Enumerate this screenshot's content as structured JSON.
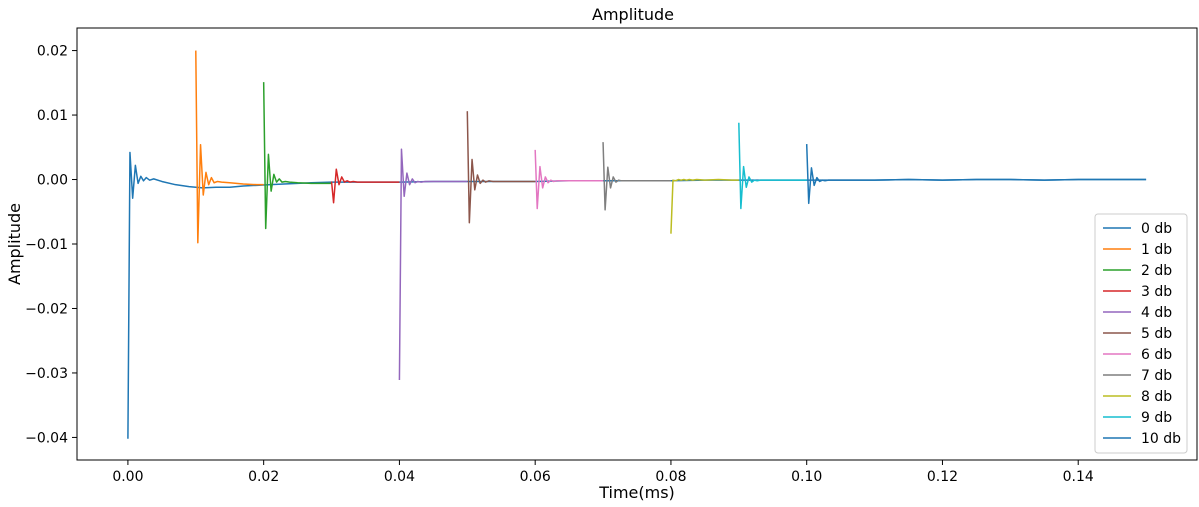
{
  "chart_data": {
    "type": "line",
    "title": "Amplitude",
    "xlabel": "Time(ms)",
    "ylabel": "Amplitude",
    "xlim": [
      -0.0075,
      0.1575
    ],
    "ylim": [
      -0.0435,
      0.0235
    ],
    "xticks": [
      0.0,
      0.02,
      0.04,
      0.06,
      0.08,
      0.1,
      0.12,
      0.14
    ],
    "xtick_labels": [
      "0.00",
      "0.02",
      "0.04",
      "0.06",
      "0.08",
      "0.10",
      "0.12",
      "0.14"
    ],
    "yticks": [
      -0.04,
      -0.03,
      -0.02,
      -0.01,
      0.0,
      0.01,
      0.02
    ],
    "ytick_labels": [
      "−0.04",
      "−0.03",
      "−0.02",
      "−0.01",
      "0.00",
      "0.01",
      "0.02"
    ],
    "grid": false,
    "legend_position": "bottom-right",
    "series": [
      {
        "name": "0 db",
        "color": "#1f77b4",
        "x": [
          0.0,
          0.0003,
          0.0007,
          0.0011,
          0.0015,
          0.0019,
          0.0023,
          0.0027,
          0.0032,
          0.0038,
          0.005,
          0.007,
          0.009,
          0.011,
          0.013,
          0.015,
          0.017,
          0.019,
          0.021,
          0.023,
          0.025,
          0.027,
          0.03,
          0.035,
          0.04,
          0.045,
          0.05,
          0.055,
          0.06,
          0.065,
          0.07,
          0.075,
          0.08,
          0.085,
          0.09,
          0.095,
          0.1,
          0.105,
          0.11,
          0.115,
          0.12,
          0.125,
          0.13,
          0.135,
          0.14,
          0.145,
          0.15
        ],
        "y": [
          -0.0402,
          0.0042,
          -0.0029,
          0.0022,
          -0.0006,
          0.0005,
          -0.0002,
          0.0003,
          -0.0001,
          0.0001,
          -0.0003,
          -0.0008,
          -0.0011,
          -0.0013,
          -0.0012,
          -0.0012,
          -0.001,
          -0.0009,
          -0.0008,
          -0.0007,
          -0.0006,
          -0.0005,
          -0.0004,
          -0.0004,
          -0.0004,
          -0.0003,
          -0.0003,
          -0.0003,
          -0.0003,
          -0.0002,
          -0.0002,
          -0.0002,
          -0.0002,
          -0.0001,
          -0.0001,
          -0.0001,
          -0.0001,
          -0.0001,
          -0.0001,
          0.0,
          -0.0001,
          0.0,
          0.0,
          -0.0001,
          0.0,
          0.0,
          0.0
        ]
      },
      {
        "name": "1 db",
        "color": "#ff7f0e",
        "x": [
          0.01,
          0.0103,
          0.0107,
          0.0111,
          0.0115,
          0.0119,
          0.0123,
          0.0127,
          0.0132,
          0.0138,
          0.015,
          0.017,
          0.019,
          0.02
        ],
        "y": [
          0.02,
          -0.0098,
          0.0054,
          -0.0024,
          0.0011,
          -0.0008,
          0.0003,
          -0.0005,
          -0.0003,
          -0.0004,
          -0.0005,
          -0.0007,
          -0.0008,
          -0.0008
        ]
      },
      {
        "name": "2 db",
        "color": "#2ca02c",
        "x": [
          0.02,
          0.0203,
          0.0207,
          0.0211,
          0.0215,
          0.0219,
          0.0223,
          0.0227,
          0.0232,
          0.0238,
          0.025,
          0.027,
          0.029,
          0.03
        ],
        "y": [
          0.0151,
          -0.0076,
          0.0039,
          -0.0018,
          0.0008,
          -0.0004,
          0.0001,
          -0.0004,
          -0.0003,
          -0.0004,
          -0.0005,
          -0.0006,
          -0.0006,
          -0.0006
        ]
      },
      {
        "name": "3 db",
        "color": "#d62728",
        "x": [
          0.03,
          0.0303,
          0.0307,
          0.0311,
          0.0315,
          0.0319,
          0.0323,
          0.0327,
          0.0332,
          0.0338,
          0.035,
          0.037,
          0.039,
          0.04
        ],
        "y": [
          -0.0003,
          -0.0036,
          0.0016,
          -0.0008,
          0.0004,
          -0.0004,
          -0.0002,
          -0.0004,
          -0.0003,
          -0.0004,
          -0.0004,
          -0.0004,
          -0.0004,
          -0.0004
        ]
      },
      {
        "name": "4 db",
        "color": "#9467bd",
        "x": [
          0.04,
          0.0403,
          0.0407,
          0.0411,
          0.0415,
          0.0419,
          0.0423,
          0.0427,
          0.0432,
          0.0438,
          0.045,
          0.047,
          0.049,
          0.05
        ],
        "y": [
          -0.0311,
          0.0047,
          -0.0026,
          0.001,
          -0.0008,
          0.0001,
          -0.0005,
          -0.0003,
          -0.0004,
          -0.0003,
          -0.0003,
          -0.0003,
          -0.0003,
          -0.0003
        ]
      },
      {
        "name": "5 db",
        "color": "#8c564b",
        "x": [
          0.05,
          0.0503,
          0.0507,
          0.0511,
          0.0515,
          0.0519,
          0.0523,
          0.0527,
          0.0532,
          0.0538,
          0.055,
          0.057,
          0.059,
          0.06
        ],
        "y": [
          0.0106,
          -0.0067,
          0.0031,
          -0.0016,
          0.0007,
          -0.0006,
          -0.0001,
          -0.0004,
          -0.0002,
          -0.0003,
          -0.0003,
          -0.0003,
          -0.0003,
          -0.0003
        ]
      },
      {
        "name": "6 db",
        "color": "#e377c2",
        "x": [
          0.06,
          0.0603,
          0.0607,
          0.0611,
          0.0615,
          0.0619,
          0.0623,
          0.0627,
          0.0632,
          0.0638,
          0.065,
          0.067,
          0.069,
          0.07
        ],
        "y": [
          0.0046,
          -0.0045,
          0.002,
          -0.0013,
          0.0004,
          -0.0005,
          -0.0001,
          -0.0003,
          -0.0002,
          -0.0002,
          -0.0002,
          -0.0002,
          -0.0002,
          -0.0002
        ]
      },
      {
        "name": "7 db",
        "color": "#7f7f7f",
        "x": [
          0.07,
          0.0703,
          0.0707,
          0.0711,
          0.0715,
          0.0719,
          0.0723,
          0.0727,
          0.0732,
          0.0738,
          0.075,
          0.077,
          0.079,
          0.08
        ],
        "y": [
          0.0058,
          -0.0047,
          0.0019,
          -0.0013,
          0.0004,
          -0.0004,
          -0.0001,
          -0.0002,
          -0.0002,
          -0.0002,
          -0.0002,
          -0.0002,
          -0.0002,
          -0.0002
        ]
      },
      {
        "name": "8 db",
        "color": "#bcbd22",
        "x": [
          0.08,
          0.0803,
          0.0807,
          0.0811,
          0.0815,
          0.0819,
          0.0823,
          0.0827,
          0.0832,
          0.0838,
          0.085,
          0.087,
          0.089,
          0.09
        ],
        "y": [
          -0.0084,
          -0.0001,
          -0.0002,
          0.0,
          -0.0001,
          0.0,
          -0.0001,
          0.0,
          -0.0001,
          0.0,
          -0.0001,
          0.0,
          -0.0001,
          -0.0001
        ]
      },
      {
        "name": "9 db",
        "color": "#17becf",
        "x": [
          0.09,
          0.0903,
          0.0907,
          0.0911,
          0.0915,
          0.0919,
          0.0923,
          0.0927,
          0.0932,
          0.0938,
          0.095,
          0.097,
          0.099,
          0.1
        ],
        "y": [
          0.0088,
          -0.0045,
          0.002,
          -0.0012,
          0.0004,
          -0.0004,
          -0.0001,
          -0.0002,
          -0.0001,
          -0.0001,
          -0.0001,
          -0.0001,
          -0.0001,
          -0.0001
        ]
      },
      {
        "name": "10 db",
        "color": "#1f77b4",
        "x": [
          0.1,
          0.1003,
          0.1007,
          0.1011,
          0.1015,
          0.1019,
          0.1023,
          0.1027,
          0.1032,
          0.1038,
          0.105,
          0.11,
          0.115,
          0.12,
          0.125,
          0.13,
          0.135,
          0.14,
          0.145,
          0.15
        ],
        "y": [
          0.0055,
          -0.0037,
          0.0018,
          -0.0009,
          0.0003,
          -0.0003,
          -0.0001,
          -0.0002,
          -0.0001,
          -0.0001,
          -0.0001,
          -0.0001,
          0.0,
          -0.0001,
          0.0,
          0.0,
          -0.0001,
          0.0,
          0.0,
          0.0
        ]
      }
    ]
  }
}
